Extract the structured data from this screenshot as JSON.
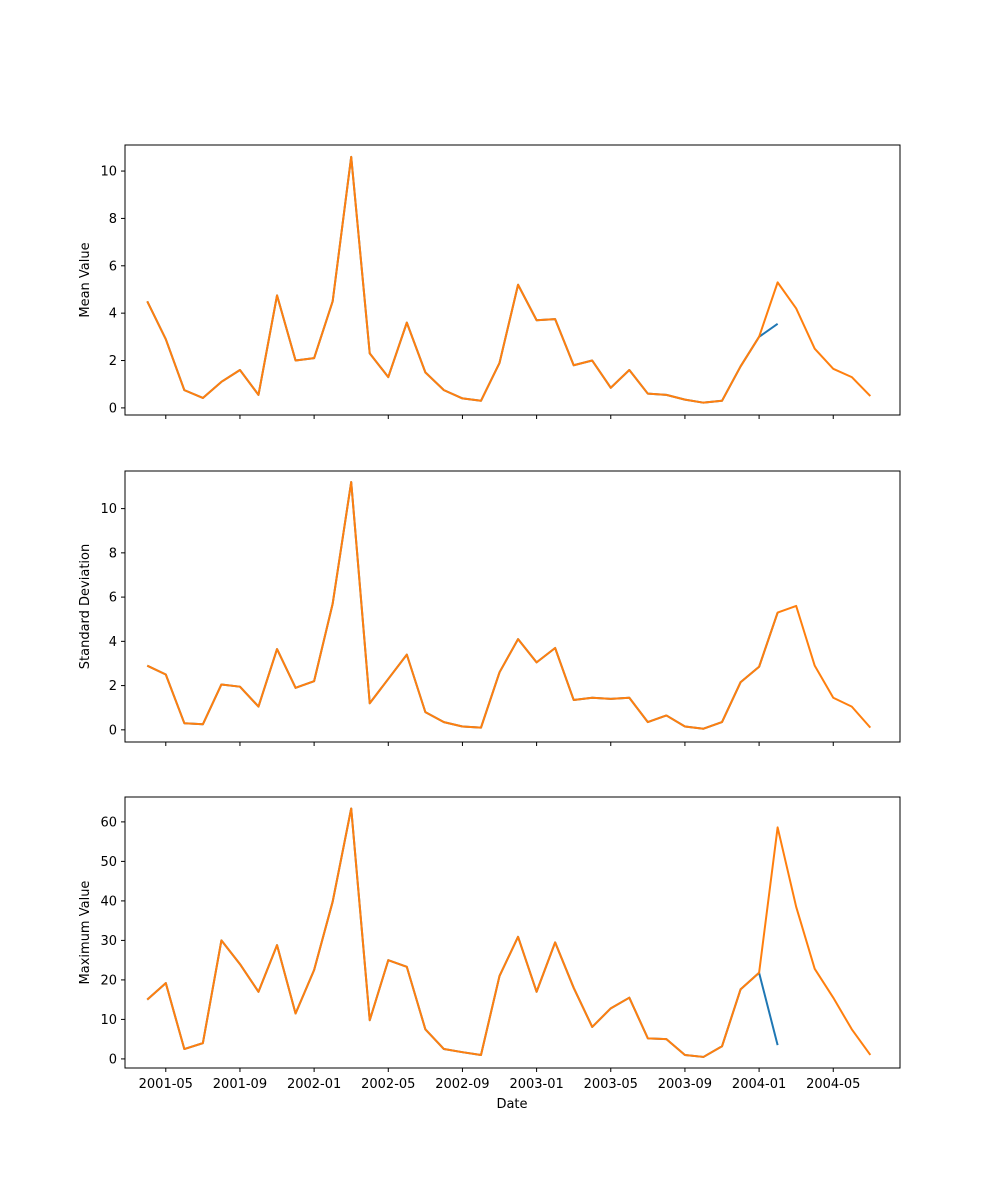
{
  "chart_data": {
    "type": "line",
    "shared_x": true,
    "xlabel": "Date",
    "x_ticks": [
      "2001-05",
      "2001-09",
      "2002-01",
      "2002-05",
      "2002-09",
      "2003-01",
      "2003-05",
      "2003-09",
      "2004-01",
      "2004-05"
    ],
    "x_range_months": [
      -1.2,
      40.6
    ],
    "colors": {
      "series_a": "#1f77b4",
      "series_b": "#ff7f0e"
    },
    "subplots": [
      {
        "ylabel": "Mean Value",
        "ylim": [
          -0.3,
          11.1
        ],
        "yticks": [
          0,
          2,
          4,
          6,
          8,
          10
        ],
        "series": [
          {
            "name": "series_a",
            "x": [
              "2001-04",
              "2001-05",
              "2001-06",
              "2001-07",
              "2001-08",
              "2001-09",
              "2001-10",
              "2001-11",
              "2001-12",
              "2002-01",
              "2002-02",
              "2002-03",
              "2002-04",
              "2002-05",
              "2002-06",
              "2002-07",
              "2002-08",
              "2002-09",
              "2002-10",
              "2002-11",
              "2002-12",
              "2003-01",
              "2003-02",
              "2003-03",
              "2003-04",
              "2003-05",
              "2003-06",
              "2003-07",
              "2003-08",
              "2003-09",
              "2003-10",
              "2003-11",
              "2003-12",
              "2004-01",
              "2004-02"
            ],
            "values": [
              4.5,
              2.9,
              0.75,
              0.42,
              1.1,
              1.6,
              0.55,
              4.75,
              2.0,
              2.1,
              4.5,
              10.6,
              2.3,
              1.3,
              3.6,
              1.5,
              0.75,
              0.4,
              0.3,
              1.9,
              5.2,
              3.7,
              3.75,
              1.8,
              2.0,
              0.85,
              1.6,
              0.6,
              0.55,
              0.35,
              0.22,
              0.3,
              1.75,
              3.0,
              3.55
            ]
          },
          {
            "name": "series_b",
            "x": [
              "2001-04",
              "2001-05",
              "2001-06",
              "2001-07",
              "2001-08",
              "2001-09",
              "2001-10",
              "2001-11",
              "2001-12",
              "2002-01",
              "2002-02",
              "2002-03",
              "2002-04",
              "2002-05",
              "2002-06",
              "2002-07",
              "2002-08",
              "2002-09",
              "2002-10",
              "2002-11",
              "2002-12",
              "2003-01",
              "2003-02",
              "2003-03",
              "2003-04",
              "2003-05",
              "2003-06",
              "2003-07",
              "2003-08",
              "2003-09",
              "2003-10",
              "2003-11",
              "2003-12",
              "2004-01",
              "2004-02",
              "2004-03",
              "2004-04",
              "2004-05",
              "2004-06",
              "2004-07"
            ],
            "values": [
              4.5,
              2.9,
              0.75,
              0.42,
              1.1,
              1.6,
              0.55,
              4.75,
              2.0,
              2.1,
              4.5,
              10.6,
              2.3,
              1.3,
              3.6,
              1.5,
              0.75,
              0.4,
              0.3,
              1.9,
              5.2,
              3.7,
              3.75,
              1.8,
              2.0,
              0.85,
              1.6,
              0.6,
              0.55,
              0.35,
              0.22,
              0.3,
              1.75,
              3.0,
              5.3,
              4.2,
              2.5,
              1.65,
              1.3,
              0.5
            ]
          }
        ]
      },
      {
        "ylabel": "Standard Deviation",
        "ylim": [
          -0.55,
          11.7
        ],
        "yticks": [
          0,
          2,
          4,
          6,
          8,
          10
        ],
        "series": [
          {
            "name": "series_a",
            "x": [
              "2001-04",
              "2001-05",
              "2001-06",
              "2001-07",
              "2001-08",
              "2001-09",
              "2001-10",
              "2001-11",
              "2001-12",
              "2002-01",
              "2002-02",
              "2002-03",
              "2002-04",
              "2002-05",
              "2002-06",
              "2002-07",
              "2002-08",
              "2002-09",
              "2002-10",
              "2002-11",
              "2002-12",
              "2003-01",
              "2003-02",
              "2003-03",
              "2003-04",
              "2003-05",
              "2003-06",
              "2003-07",
              "2003-08",
              "2003-09",
              "2003-10",
              "2003-11",
              "2003-12",
              "2004-01",
              "2004-02"
            ],
            "values": [
              2.9,
              2.5,
              0.3,
              0.25,
              2.05,
              1.95,
              1.05,
              3.65,
              1.9,
              2.2,
              5.7,
              11.2,
              1.2,
              2.3,
              3.4,
              0.8,
              0.35,
              0.15,
              0.1,
              2.6,
              4.1,
              3.05,
              3.7,
              1.35,
              1.45,
              1.4,
              1.45,
              0.35,
              0.65,
              0.15,
              0.05,
              0.35,
              2.15,
              2.85,
              5.3
            ]
          },
          {
            "name": "series_b",
            "x": [
              "2001-04",
              "2001-05",
              "2001-06",
              "2001-07",
              "2001-08",
              "2001-09",
              "2001-10",
              "2001-11",
              "2001-12",
              "2002-01",
              "2002-02",
              "2002-03",
              "2002-04",
              "2002-05",
              "2002-06",
              "2002-07",
              "2002-08",
              "2002-09",
              "2002-10",
              "2002-11",
              "2002-12",
              "2003-01",
              "2003-02",
              "2003-03",
              "2003-04",
              "2003-05",
              "2003-06",
              "2003-07",
              "2003-08",
              "2003-09",
              "2003-10",
              "2003-11",
              "2003-12",
              "2004-01",
              "2004-02",
              "2004-03",
              "2004-04",
              "2004-05",
              "2004-06",
              "2004-07"
            ],
            "values": [
              2.9,
              2.5,
              0.3,
              0.25,
              2.05,
              1.95,
              1.05,
              3.65,
              1.9,
              2.2,
              5.7,
              11.2,
              1.2,
              2.3,
              3.4,
              0.8,
              0.35,
              0.15,
              0.1,
              2.6,
              4.1,
              3.05,
              3.7,
              1.35,
              1.45,
              1.4,
              1.45,
              0.35,
              0.65,
              0.15,
              0.05,
              0.35,
              2.15,
              2.85,
              5.3,
              5.6,
              2.9,
              1.45,
              1.05,
              0.1
            ]
          }
        ]
      },
      {
        "ylabel": "Maximum Value",
        "ylim": [
          -2.3,
          66.3
        ],
        "yticks": [
          0,
          10,
          20,
          30,
          40,
          50,
          60
        ],
        "series": [
          {
            "name": "series_a",
            "x": [
              "2001-04",
              "2001-05",
              "2001-06",
              "2001-07",
              "2001-08",
              "2001-09",
              "2001-10",
              "2001-11",
              "2001-12",
              "2002-01",
              "2002-02",
              "2002-03",
              "2002-04",
              "2002-05",
              "2002-06",
              "2002-07",
              "2002-08",
              "2002-09",
              "2002-10",
              "2002-11",
              "2002-12",
              "2003-01",
              "2003-02",
              "2003-03",
              "2003-04",
              "2003-05",
              "2003-06",
              "2003-07",
              "2003-08",
              "2003-09",
              "2003-10",
              "2003-11",
              "2003-12",
              "2004-01",
              "2004-02"
            ],
            "values": [
              15.0,
              19.2,
              2.5,
              4.0,
              30.0,
              24.0,
              17.0,
              28.8,
              11.5,
              22.5,
              39.8,
              63.4,
              9.8,
              25.0,
              23.3,
              7.5,
              2.5,
              1.7,
              1.0,
              21.0,
              30.9,
              17.0,
              29.5,
              18.0,
              8.1,
              12.8,
              15.5,
              5.2,
              5.0,
              1.0,
              0.5,
              3.2,
              17.6,
              21.8,
              3.5
            ]
          },
          {
            "name": "series_b",
            "x": [
              "2001-04",
              "2001-05",
              "2001-06",
              "2001-07",
              "2001-08",
              "2001-09",
              "2001-10",
              "2001-11",
              "2001-12",
              "2002-01",
              "2002-02",
              "2002-03",
              "2002-04",
              "2002-05",
              "2002-06",
              "2002-07",
              "2002-08",
              "2002-09",
              "2002-10",
              "2002-11",
              "2002-12",
              "2003-01",
              "2003-02",
              "2003-03",
              "2003-04",
              "2003-05",
              "2003-06",
              "2003-07",
              "2003-08",
              "2003-09",
              "2003-10",
              "2003-11",
              "2003-12",
              "2004-01",
              "2004-02",
              "2004-03",
              "2004-04",
              "2004-05",
              "2004-06",
              "2004-07"
            ],
            "values": [
              15.0,
              19.2,
              2.5,
              4.0,
              30.0,
              24.0,
              17.0,
              28.8,
              11.5,
              22.5,
              39.8,
              63.4,
              9.8,
              25.0,
              23.3,
              7.5,
              2.5,
              1.7,
              1.0,
              21.0,
              30.9,
              17.0,
              29.5,
              18.0,
              8.1,
              12.8,
              15.5,
              5.2,
              5.0,
              1.0,
              0.5,
              3.2,
              17.6,
              21.8,
              58.6,
              38.5,
              22.8,
              15.5,
              7.5,
              1.0
            ]
          }
        ]
      }
    ]
  }
}
